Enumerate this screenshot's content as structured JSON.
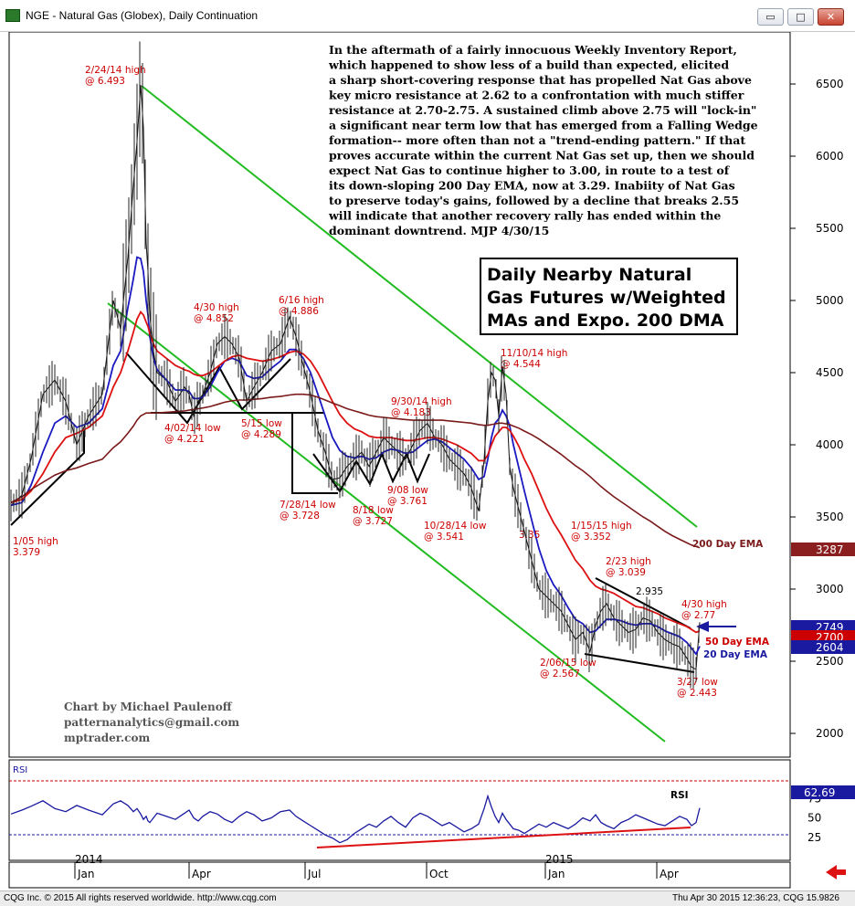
{
  "window": {
    "title": "NGE - Natural Gas (Globex), Daily Continuation",
    "buttons": [
      "▭",
      "□",
      "✕"
    ]
  },
  "commentary": [
    "In the aftermath of a fairly innocuous Weekly Inventory Report,",
    "which happened to show less of a build than expected, elicited",
    "a sharp short-covering response that has propelled Nat Gas above",
    "key micro resistance at 2.62 to a confrontation with much stiffer",
    "resistance at 2.70-2.75. A sustained climb above 2.75 will \"lock-in\"",
    "a significant near term low that has emerged from a Falling Wedge",
    "formation-- more often than not a \"trend-ending pattern.\" If that",
    "proves accurate within the current Nat Gas set up, then we should",
    "expect Nat Gas to continue higher to 3.00, in route to a test of",
    "its down-sloping 200 Day EMA, now at 3.29. Inabiity of Nat Gas",
    "to preserve today's gains, followed by a decline that breaks 2.55",
    "will indicate that another recovery rally has ended within the",
    "dominant downtrend. MJP 4/30/15"
  ],
  "title_box": [
    "Daily Nearby Natural",
    "Gas Futures w/Weighted",
    "MAs and Expo. 200 DMA"
  ],
  "credits": [
    "Chart by Michael Paulenoff",
    "patternanalytics@gmail.com",
    "mptrader.com"
  ],
  "chart_data": {
    "type": "line",
    "price_axis": {
      "ticks": [
        2000,
        2500,
        3000,
        3500,
        4000,
        4500,
        5000,
        5500,
        6000,
        6500
      ],
      "labels": [
        "2000",
        "2500",
        "3000",
        "3500",
        "4000",
        "4500",
        "5000",
        "5500",
        "6000",
        "6500"
      ],
      "ylim": [
        1800,
        6750
      ]
    },
    "time_axis": {
      "months": [
        "Jan",
        "Apr",
        "Jul",
        "Oct",
        "Jan",
        "Apr"
      ],
      "years": [
        "2014",
        "2015"
      ]
    },
    "price_series": {
      "name": "NGE",
      "x": [
        0,
        12,
        22,
        35,
        48,
        60,
        72,
        85,
        100,
        112,
        120,
        128,
        134,
        138,
        142,
        145,
        148,
        150,
        152,
        156,
        160,
        170,
        180,
        190,
        195,
        200,
        205,
        210,
        218,
        226,
        234,
        242,
        250,
        258,
        266,
        275,
        285,
        295,
        305,
        312,
        320,
        328,
        336,
        344,
        352,
        360,
        368,
        376,
        384,
        392,
        400,
        408,
        416,
        424,
        432,
        440,
        448,
        456,
        464,
        472,
        480,
        488,
        496,
        504,
        512,
        518,
        522,
        526,
        530,
        534,
        538,
        542,
        546,
        550,
        556,
        562,
        570,
        578,
        586,
        594,
        602,
        610,
        618,
        626,
        634,
        640,
        646,
        652,
        660,
        668,
        676,
        684,
        692,
        700,
        708,
        716,
        724,
        732,
        740,
        745,
        750,
        754
      ],
      "values": [
        3580,
        3650,
        3900,
        4350,
        4450,
        4300,
        4000,
        4200,
        4350,
        5000,
        4800,
        5300,
        5800,
        6100,
        6493,
        6200,
        5400,
        5200,
        4900,
        4650,
        4500,
        4450,
        4300,
        4400,
        4350,
        4200,
        4300,
        4350,
        4500,
        4700,
        4750,
        4700,
        4600,
        4300,
        4400,
        4500,
        4650,
        4700,
        4886,
        4750,
        4550,
        4350,
        4100,
        3950,
        3760,
        3770,
        3850,
        3900,
        3950,
        3850,
        3950,
        4050,
        4000,
        3950,
        3900,
        4000,
        4100,
        4150,
        4050,
        4000,
        3900,
        3850,
        3800,
        3700,
        3541,
        3900,
        4300,
        4500,
        4450,
        4200,
        4544,
        4350,
        3850,
        3700,
        3550,
        3400,
        3200,
        3000,
        2950,
        2900,
        2850,
        2750,
        2650,
        2700,
        2567,
        2750,
        2850,
        2900,
        2800,
        2750,
        2700,
        2720,
        2800,
        2780,
        2700,
        2650,
        2620,
        2600,
        2520,
        2460,
        2443,
        2770
      ]
    },
    "ema_20": {
      "name": "20 Day EMA",
      "values": [
        3580,
        3600,
        3720,
        3950,
        4150,
        4200,
        4120,
        4150,
        4250,
        4550,
        4650,
        4950,
        5150,
        5300,
        5290,
        5200,
        5000,
        4900,
        4750,
        4600,
        4520,
        4450,
        4380,
        4380,
        4370,
        4320,
        4320,
        4330,
        4400,
        4500,
        4580,
        4600,
        4580,
        4480,
        4460,
        4470,
        4530,
        4580,
        4660,
        4660,
        4600,
        4500,
        4350,
        4200,
        4050,
        3960,
        3920,
        3910,
        3920,
        3900,
        3910,
        3950,
        3970,
        3960,
        3940,
        3950,
        3990,
        4030,
        4040,
        4020,
        3980,
        3940,
        3900,
        3840,
        3760,
        3780,
        3900,
        4050,
        4150,
        4180,
        4240,
        4200,
        4130,
        4000,
        3840,
        3680,
        3480,
        3280,
        3130,
        3030,
        2960,
        2870,
        2790,
        2760,
        2700,
        2710,
        2750,
        2790,
        2790,
        2780,
        2760,
        2750,
        2760,
        2760,
        2740,
        2710,
        2690,
        2670,
        2630,
        2590,
        2550,
        2604
      ]
    },
    "ema_50": {
      "name": "50 Day EMA",
      "values": [
        3600,
        3620,
        3680,
        3800,
        3950,
        4050,
        4080,
        4120,
        4200,
        4400,
        4500,
        4650,
        4780,
        4870,
        4920,
        4900,
        4850,
        4820,
        4770,
        4700,
        4650,
        4600,
        4550,
        4520,
        4510,
        4490,
        4480,
        4480,
        4500,
        4540,
        4580,
        4610,
        4620,
        4600,
        4590,
        4580,
        4590,
        4610,
        4640,
        4650,
        4630,
        4580,
        4500,
        4400,
        4300,
        4210,
        4150,
        4110,
        4090,
        4060,
        4050,
        4050,
        4050,
        4040,
        4030,
        4030,
        4040,
        4050,
        4050,
        4040,
        4020,
        4000,
        3970,
        3940,
        3890,
        3890,
        3930,
        4000,
        4060,
        4090,
        4120,
        4120,
        4100,
        4060,
        3990,
        3900,
        3800,
        3680,
        3560,
        3460,
        3380,
        3290,
        3200,
        3140,
        3060,
        3020,
        3000,
        2990,
        2970,
        2940,
        2910,
        2880,
        2870,
        2850,
        2830,
        2800,
        2780,
        2760,
        2740,
        2720,
        2700,
        2710
      ]
    },
    "ema_200": {
      "name": "200 Day EMA",
      "values": [
        3600,
        3640,
        3690,
        3740,
        3790,
        3820,
        3840,
        3870,
        3900,
        3980,
        4020,
        4080,
        4130,
        4170,
        4200,
        4210,
        4220,
        4220,
        4220,
        4220,
        4220,
        4225,
        4230,
        4235,
        4240,
        4245,
        4250,
        4255,
        4265,
        4280,
        4295,
        4305,
        4310,
        4310,
        4315,
        4320,
        4330,
        4335,
        4345,
        4350,
        4350,
        4345,
        4330,
        4310,
        4290,
        4270,
        4250,
        4235,
        4220,
        4205,
        4195,
        4190,
        4185,
        4180,
        4175,
        4170,
        4170,
        4170,
        4170,
        4170,
        4165,
        4160,
        4155,
        4150,
        4140,
        4135,
        4135,
        4140,
        4145,
        4150,
        4150,
        4145,
        4140,
        4130,
        4115,
        4095,
        4070,
        4040,
        4005,
        3970,
        3935,
        3895,
        3855,
        3820,
        3780,
        3745,
        3710,
        3680,
        3640,
        3605,
        3570,
        3535,
        3500,
        3470,
        3435,
        3400,
        3370,
        3345,
        3320,
        3305,
        3295,
        3287
      ]
    },
    "annotations": [
      {
        "text": "2/24/14 high",
        "value": "@ 6.493"
      },
      {
        "text": "4/30 high",
        "value": "@ 4.852"
      },
      {
        "text": "6/16 high",
        "value": "@ 4.886"
      },
      {
        "text": "11/10/14 high",
        "value": "@ 4.544"
      },
      {
        "text": "9/30/14 high",
        "value": "@ 4.183"
      },
      {
        "text": "4/02/14 low",
        "value": "@ 4.221"
      },
      {
        "text": "5/15 low",
        "value": "@ 4.289"
      },
      {
        "text": "9/08 low",
        "value": "@ 3.761"
      },
      {
        "text": "7/28/14 low",
        "value": "@ 3.728"
      },
      {
        "text": "8/18 low",
        "value": "@ 3.727"
      },
      {
        "text": "10/28/14 low",
        "value": "@ 3.541"
      },
      {
        "text": "1/15/15 high",
        "value": "@ 3.352"
      },
      {
        "text": "3.35",
        "value": ""
      },
      {
        "text": "2/23 high",
        "value": "@ 3.039"
      },
      {
        "text": "4/30 high",
        "value": "@ 2.77"
      },
      {
        "text": "2/06/15 low",
        "value": "@ 2.567"
      },
      {
        "text": "3/27 low",
        "value": "@ 2.443"
      },
      {
        "text": "1/05 high",
        "value": "3.379"
      }
    ],
    "level_labels": {
      "wedge_top": "2.935"
    },
    "legend": {
      "ema200": "200 Day EMA",
      "ema50": "50 Day EMA",
      "ema20": "20 Day EMA"
    },
    "price_badges": [
      {
        "label": "3287",
        "value": 3287,
        "color": "#8b1f1f"
      },
      {
        "label": "2749",
        "value": 2749,
        "color": "#1a1aa0"
      },
      {
        "label": "2700",
        "value": 2700,
        "color": "#cc0000"
      },
      {
        "label": "2604",
        "value": 2604,
        "color": "#1a1aa0"
      }
    ],
    "rsi": {
      "name": "RSI",
      "label": "RSI",
      "current": "62.69",
      "ticks": [
        25,
        50,
        75
      ],
      "labels": [
        "25",
        "50",
        "75"
      ],
      "ylim": [
        0,
        100
      ],
      "values": [
        55,
        60,
        65,
        72,
        62,
        58,
        66,
        60,
        54,
        68,
        72,
        66,
        58,
        62,
        55,
        48,
        52,
        46,
        44,
        50,
        56,
        52,
        48,
        56,
        60,
        50,
        46,
        52,
        58,
        55,
        48,
        44,
        52,
        58,
        54,
        46,
        50,
        58,
        60,
        52,
        46,
        40,
        34,
        28,
        24,
        18,
        22,
        30,
        36,
        42,
        38,
        46,
        52,
        44,
        38,
        50,
        56,
        52,
        46,
        40,
        44,
        38,
        32,
        36,
        42,
        62,
        78,
        64,
        52,
        44,
        56,
        48,
        42,
        36,
        34,
        30,
        36,
        42,
        38,
        44,
        40,
        36,
        42,
        50,
        46,
        54,
        44,
        40,
        36,
        44,
        48,
        54,
        50,
        46,
        42,
        40,
        46,
        52,
        48,
        40,
        44,
        62.69
      ]
    }
  }
}
